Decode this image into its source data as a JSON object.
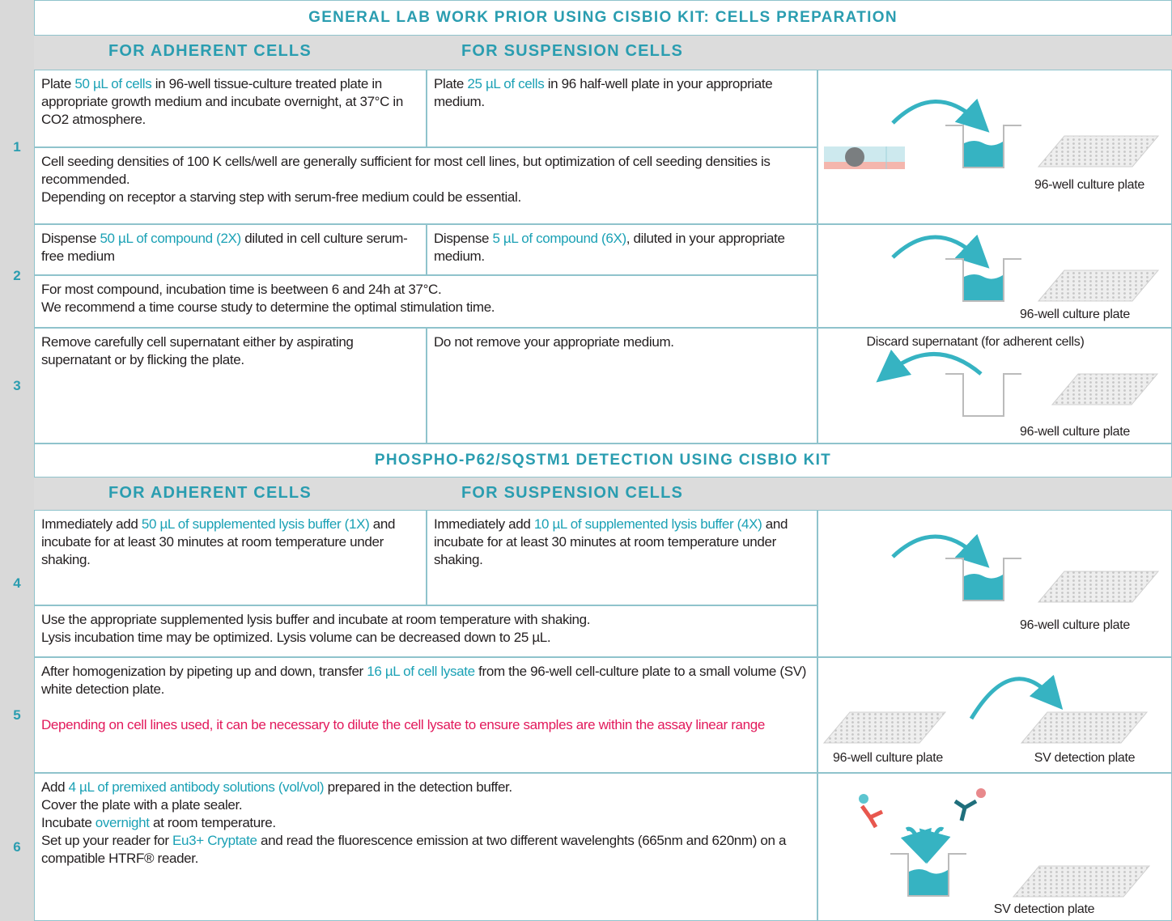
{
  "sections": [
    {
      "title": "GENERAL LAB WORK PRIOR USING CISBIO KIT: CELLS PREPARATION",
      "column_headers": [
        "FOR ADHERENT CELLS",
        "FOR SUSPENSION CELLS"
      ],
      "steps": [
        {
          "number": "1",
          "adherent": [
            [
              {
                "text": "Plate "
              },
              {
                "text": "50 µL of cells",
                "color": "#1ba1b5"
              },
              {
                "text": " in 96-well tissue-culture treated plate in appropriate growth medium and incubate overnight, at 37°C in CO2 atmosphere."
              }
            ]
          ],
          "suspension": [
            [
              {
                "text": "Plate "
              },
              {
                "text": "25 µL of cells",
                "color": "#1ba1b5"
              },
              {
                "text": " in 96 half-well plate in your appropriate medium."
              }
            ]
          ],
          "note": [
            [
              {
                "text": "Cell seeding densities of 100 K cells/well are generally sufficient for most cell lines, but optimization of cell seeding densities is recommended."
              }
            ],
            [
              {
                "text": "Depending on receptor a starving step with serum-free medium could be essential."
              }
            ]
          ],
          "figure": {
            "captions": [
              "96-well culture plate"
            ]
          }
        },
        {
          "number": "2",
          "adherent": [
            [
              {
                "text": "Dispense "
              },
              {
                "text": "50 µL of compound (2X)",
                "color": "#1ba1b5"
              },
              {
                "text": " diluted in cell culture serum-free medium"
              }
            ]
          ],
          "suspension": [
            [
              {
                "text": "Dispense "
              },
              {
                "text": "5 µL of compound (6X)",
                "color": "#1ba1b5"
              },
              {
                "text": ", diluted in your appropriate medium."
              }
            ]
          ],
          "note": [
            [
              {
                "text": "For most compound, incubation time is beetween 6 and 24h at 37°C."
              }
            ],
            [
              {
                "text": "We recommend a time course study to determine the optimal stimulation time."
              }
            ]
          ],
          "figure": {
            "captions": [
              "96-well culture plate"
            ]
          }
        },
        {
          "number": "3",
          "adherent": [
            [
              {
                "text": "Remove carefully cell supernatant either by aspirating supernatant or by flicking the plate."
              }
            ]
          ],
          "suspension": [
            [
              {
                "text": "Do not remove your appropriate medium."
              }
            ]
          ],
          "figure": {
            "label": "Discard supernatant (for adherent cells)",
            "captions": [
              "96-well culture plate"
            ]
          }
        }
      ]
    },
    {
      "title": "PHOSPHO-P62/SQSTM1 DETECTION USING CISBIO KIT",
      "column_headers": [
        "FOR ADHERENT CELLS",
        "FOR SUSPENSION CELLS"
      ],
      "steps": [
        {
          "number": "4",
          "adherent": [
            [
              {
                "text": "Immediately add "
              },
              {
                "text": "50 µL of supplemented lysis buffer (1X)",
                "color": "#1ba1b5"
              },
              {
                "text": " and incubate for at least 30 minutes at room temperature under shaking."
              }
            ]
          ],
          "suspension": [
            [
              {
                "text": "Immediately add "
              },
              {
                "text": "10 µL of supplemented lysis buffer (4X)",
                "color": "#1ba1b5"
              },
              {
                "text": " and incubate for at least 30 minutes at room temperature under shaking."
              }
            ]
          ],
          "note": [
            [
              {
                "text": "Use the appropriate supplemented lysis buffer and incubate at room temperature with shaking."
              }
            ],
            [
              {
                "text": "Lysis incubation time may be optimized. Lysis volume can be decreased down to 25 µL."
              }
            ]
          ],
          "figure": {
            "captions": [
              "96-well culture plate"
            ]
          }
        },
        {
          "number": "5",
          "text": [
            [
              {
                "text": "After homogenization by pipeting up and down, transfer "
              },
              {
                "text": "16 µL of cell lysate",
                "color": "#1ba1b5"
              },
              {
                "text": " from the 96-well cell-culture plate to a small volume (SV) white detection plate."
              }
            ],
            [
              {
                "text": "Depending on cell lines used, it can be necessary to dilute the cell lysate to ensure samples are within the assay linear range",
                "color": "#e2195b"
              }
            ]
          ],
          "figure": {
            "captions": [
              "96-well culture plate",
              "SV detection plate"
            ]
          }
        },
        {
          "number": "6",
          "text": [
            [
              {
                "text": "Add "
              },
              {
                "text": "4 µL of premixed antibody solutions (vol/vol)",
                "color": "#1ba1b5"
              },
              {
                "text": " prepared in the detection buffer."
              }
            ],
            [
              {
                "text": "Cover the plate with a plate sealer."
              }
            ],
            [
              {
                "text": "Incubate "
              },
              {
                "text": "overnight",
                "color": "#1ba1b5"
              },
              {
                "text": " at room temperature."
              }
            ],
            [
              {
                "text": "Set up your reader for "
              },
              {
                "text": "Eu3+ Cryptate",
                "color": "#1ba1b5"
              },
              {
                "text": " and read the fluorescence emission at two different wavelenghts (665nm and 620nm) on a compatible HTRF® reader."
              }
            ]
          ],
          "figure": {
            "captions": [
              "SV detection plate"
            ]
          }
        }
      ]
    }
  ]
}
